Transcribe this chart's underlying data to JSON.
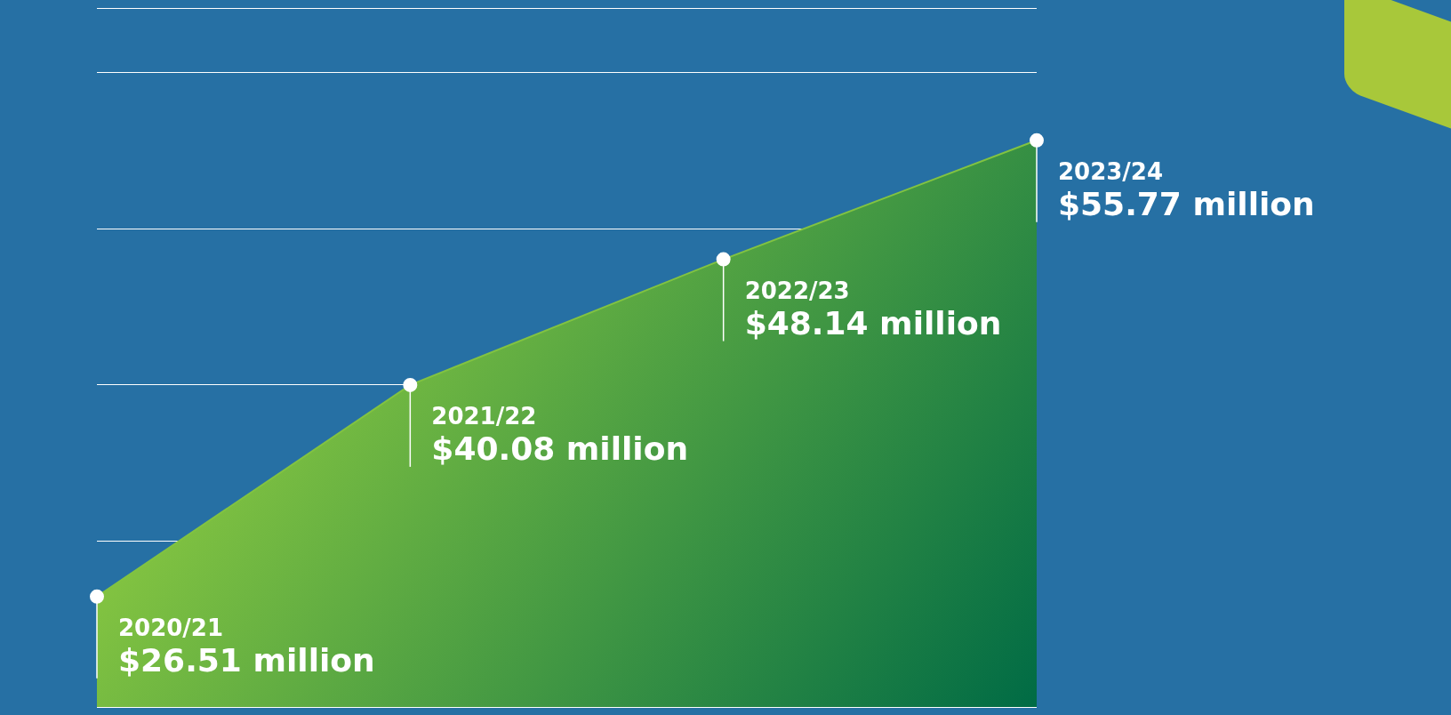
{
  "chart_data": {
    "type": "area",
    "categories": [
      "2020/21",
      "2021/22",
      "2022/23",
      "2023/24"
    ],
    "series": [
      {
        "color": "#82c341",
        "values": [
          26.51,
          40.08,
          48.14,
          55.77
        ],
        "value_labels": [
          "$26.51 million",
          "$40.08 million",
          "$48.14 million",
          "$55.77 million"
        ]
      }
    ],
    "grid": "y",
    "legend": false,
    "marker": "circle"
  }
}
